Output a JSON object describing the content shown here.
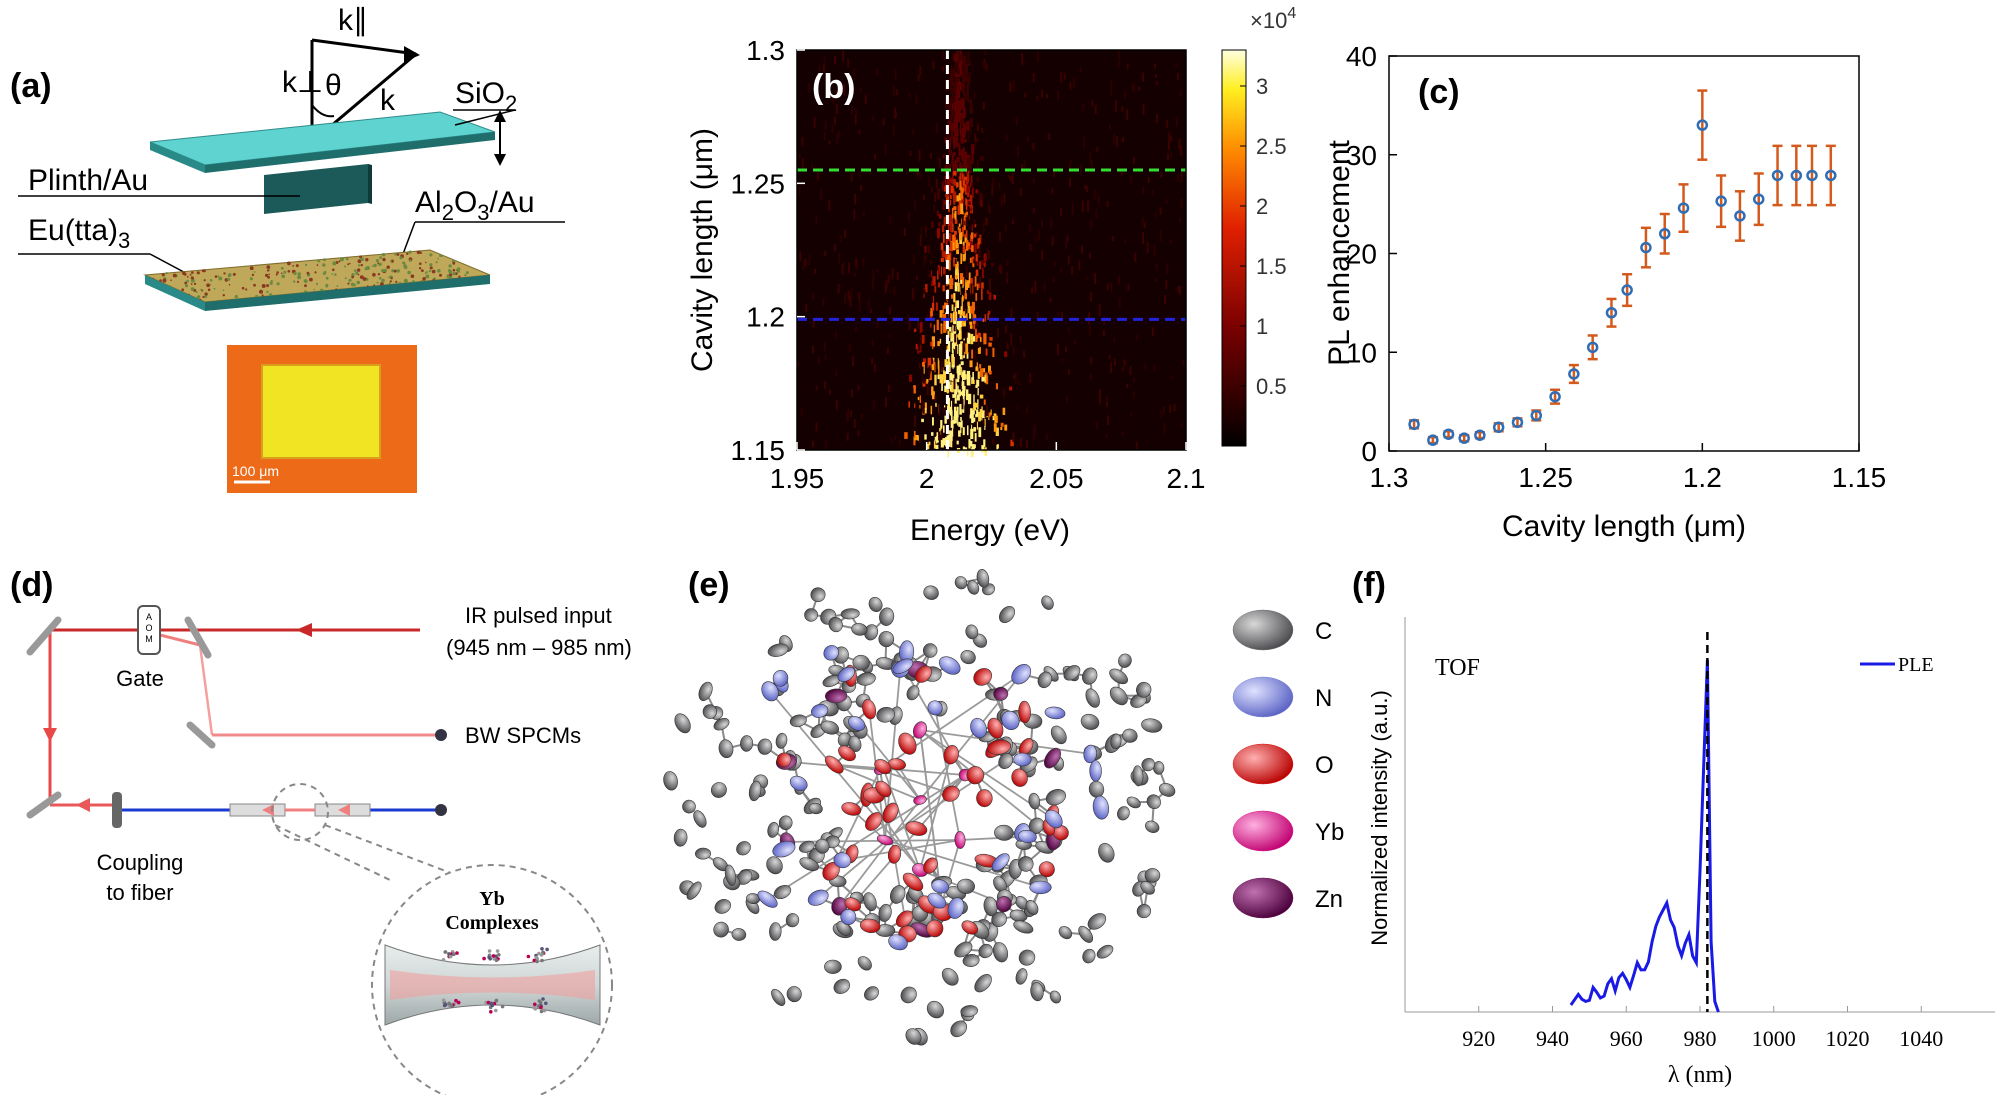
{
  "panels": {
    "a": {
      "label": "(a)",
      "k_par": "k∥",
      "k_perp": "k⊥",
      "theta": "θ",
      "k": "k",
      "sio2": "SiO",
      "sio2_sub": "2",
      "plinth": "Plinth/Au",
      "eu": "Eu(tta)",
      "eu_sub": "3",
      "al2o3_a": "Al",
      "al2o3_sub1": "2",
      "al2o3_b": "O",
      "al2o3_sub2": "3",
      "al2o3_c": "/Au",
      "scale": "100 μm"
    },
    "b": {
      "label": "(b)",
      "colorbar_exp": "×10",
      "colorbar_exp_power": "4",
      "colorbar_ticks": [
        "3",
        "2.5",
        "2",
        "1.5",
        "1",
        "0.5"
      ],
      "colorbar_tick_values": [
        3,
        2.5,
        2,
        1.5,
        1,
        0.5
      ],
      "colorbar_range": [
        0,
        3.3
      ]
    },
    "c": {
      "label": "(c)"
    },
    "d": {
      "label": "(d)",
      "aom": "A O M",
      "gate": "Gate",
      "ir_input": "IR pulsed input",
      "ir_range": "(945 nm – 985 nm)",
      "spcm": "BW SPCMs",
      "coupling": "Coupling",
      "coupling2": "to fiber",
      "yb1": "Yb",
      "yb2": "Complexes"
    },
    "e": {
      "label": "(e)",
      "legend": [
        {
          "name": "C",
          "color": "#6f6f73"
        },
        {
          "name": "N",
          "color": "#7f86d6"
        },
        {
          "name": "O",
          "color": "#e01818"
        },
        {
          "name": "Yb",
          "color": "#e21a8a"
        },
        {
          "name": "Zn",
          "color": "#6e0e57"
        }
      ]
    },
    "f": {
      "label": "(f)",
      "tof": "TOF"
    }
  },
  "chart_data": [
    {
      "id": "b",
      "type": "heatmap",
      "title": "",
      "xlabel": "Energy (eV)",
      "ylabel": "Cavity length (μm)",
      "xlim": [
        1.95,
        2.1
      ],
      "ylim": [
        1.15,
        1.3
      ],
      "xticks": [
        "1.95",
        "2",
        "2.05",
        "2.1"
      ],
      "xtick_values": [
        1.95,
        2.0,
        2.05,
        2.1
      ],
      "yticks": [
        "1.3",
        "1.25",
        "1.2",
        "1.15"
      ],
      "ytick_values": [
        1.3,
        1.25,
        1.2,
        1.15
      ],
      "emission_peak_eV": 2.012,
      "vertical_line_eV": 2.008,
      "horizontal_lines_um": [
        1.255,
        1.199
      ],
      "horizontal_line_colors": [
        "#33dd33",
        "#2222dd"
      ]
    },
    {
      "id": "c",
      "type": "scatter",
      "title": "",
      "xlabel": "Cavity length (μm)",
      "ylabel": "PL enhancement",
      "xlim": [
        1.3,
        1.15
      ],
      "ylim": [
        0,
        40
      ],
      "xticks": [
        "1.3",
        "1.25",
        "1.2",
        "1.15"
      ],
      "xtick_values": [
        1.3,
        1.25,
        1.2,
        1.15
      ],
      "yticks": [
        "0",
        "10",
        "20",
        "30",
        "40"
      ],
      "ytick_values": [
        0,
        10,
        20,
        30,
        40
      ],
      "x": [
        1.292,
        1.286,
        1.281,
        1.276,
        1.271,
        1.265,
        1.259,
        1.253,
        1.247,
        1.241,
        1.235,
        1.229,
        1.224,
        1.218,
        1.212,
        1.206,
        1.2,
        1.194,
        1.188,
        1.182,
        1.176,
        1.17,
        1.165,
        1.159
      ],
      "y": [
        2.7,
        1.1,
        1.7,
        1.3,
        1.6,
        2.4,
        2.9,
        3.6,
        5.5,
        7.8,
        10.5,
        14.0,
        16.3,
        20.6,
        22.0,
        24.6,
        33.0,
        25.3,
        23.8,
        25.5,
        27.9,
        27.9,
        27.9,
        27.9
      ],
      "yerr": [
        0.4,
        0.3,
        0.3,
        0.3,
        0.3,
        0.4,
        0.4,
        0.5,
        0.7,
        0.9,
        1.2,
        1.4,
        1.6,
        2.0,
        2.0,
        2.4,
        3.5,
        2.6,
        2.5,
        2.6,
        3.0,
        3.0,
        3.0,
        3.0
      ],
      "marker_color": "#2f6db5",
      "errorbar_color": "#d35a1c"
    },
    {
      "id": "f",
      "type": "line",
      "title": "",
      "xlabel": "λ (nm)",
      "ylabel": "Normalized intensity (a.u.)",
      "xlim": [
        900,
        1060
      ],
      "ylim": [
        0,
        1.0
      ],
      "xticks": [
        "920",
        "940",
        "960",
        "980",
        "1000",
        "1020",
        "1040"
      ],
      "xtick_values": [
        920,
        940,
        960,
        980,
        1000,
        1020,
        1040
      ],
      "vertical_line_nm": 982,
      "series": [
        {
          "name": "PLE",
          "color": "#1a1ae6",
          "x": [
            945,
            947,
            949,
            951,
            953,
            955,
            957,
            959,
            961,
            963,
            965,
            967,
            969,
            971,
            973,
            975,
            977,
            979,
            980,
            981,
            982,
            983,
            984,
            985
          ],
          "y": [
            0.02,
            0.05,
            0.03,
            0.07,
            0.04,
            0.08,
            0.06,
            0.11,
            0.07,
            0.14,
            0.12,
            0.2,
            0.27,
            0.31,
            0.24,
            0.16,
            0.22,
            0.14,
            0.4,
            0.7,
            1.0,
            0.2,
            0.03,
            0.0
          ]
        }
      ]
    }
  ]
}
